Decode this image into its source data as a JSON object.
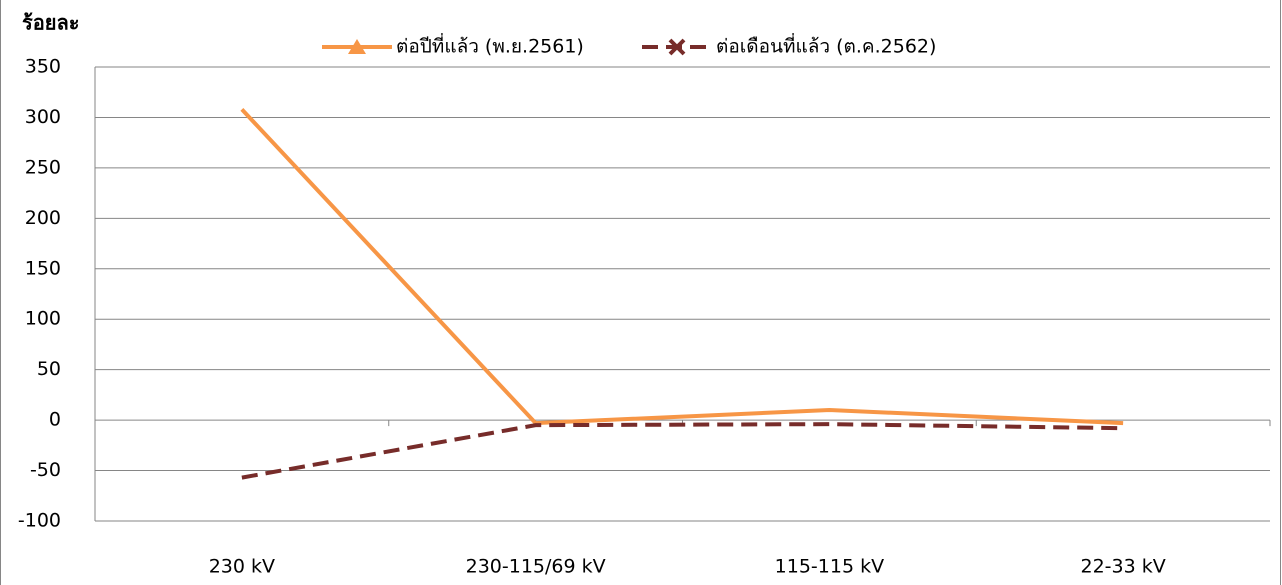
{
  "chart_data": {
    "type": "line",
    "y_label": "ร้อยละ",
    "categories": [
      "230 kV",
      "230-115/69 kV",
      "115-115 kV",
      "22-33 kV"
    ],
    "series": [
      {
        "name": "ต่อปีที่แล้ว (พ.ย.2561)",
        "color": "#f79646",
        "marker": "triangle",
        "dash": false,
        "values": [
          308,
          -3,
          10,
          -3
        ]
      },
      {
        "name": "ต่อเดือนที่แล้ว (ต.ค.2562)",
        "color": "#772c2a",
        "marker": "x",
        "dash": true,
        "values": [
          -57,
          -5,
          -4,
          -8
        ]
      }
    ],
    "ylim": [
      -100,
      350
    ],
    "yticks": [
      -100,
      -50,
      0,
      50,
      100,
      150,
      200,
      250,
      300,
      350
    ],
    "grid": true
  }
}
